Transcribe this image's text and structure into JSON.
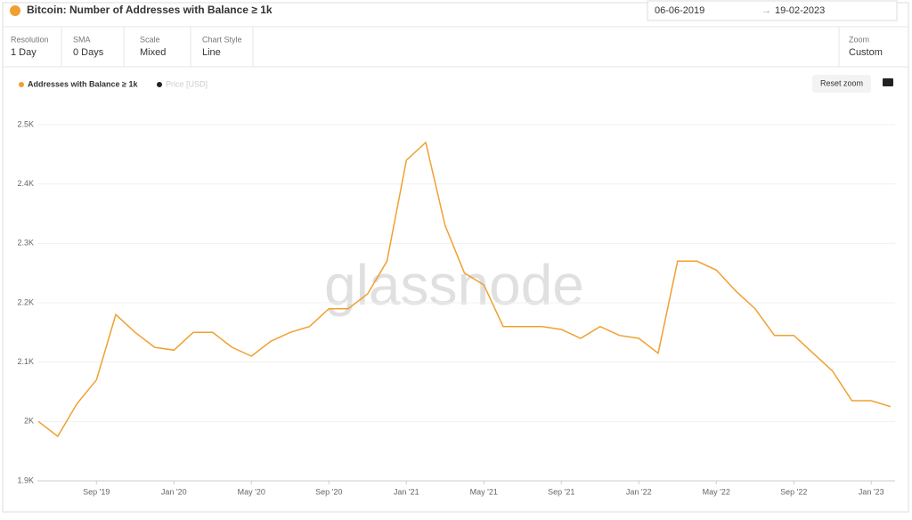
{
  "ui": {
    "title": "Bitcoin: Number of Addresses with Balance ≥ 1k",
    "date_from": "06-06-2019",
    "date_to": "19-02-2023",
    "controls": [
      {
        "label": "Resolution",
        "value": "1 Day"
      },
      {
        "label": "SMA",
        "value": "0 Days"
      },
      {
        "label": "Scale",
        "value": "Mixed"
      },
      {
        "label": "Chart Style",
        "value": "Line"
      }
    ],
    "zoom": {
      "label": "Zoom",
      "value": "Custom"
    },
    "reset_zoom": "Reset zoom",
    "hidden_legend": "Price [USD]",
    "watermark": "glassnode"
  },
  "chart_data": {
    "type": "line",
    "x": [
      "2019-06",
      "2019-07",
      "2019-08",
      "2019-09",
      "2019-10",
      "2019-11",
      "2019-12",
      "2020-01",
      "2020-02",
      "2020-03",
      "2020-04",
      "2020-05",
      "2020-06",
      "2020-07",
      "2020-08",
      "2020-09",
      "2020-10",
      "2020-11",
      "2020-12",
      "2021-01",
      "2021-02",
      "2021-03",
      "2021-04",
      "2021-05",
      "2021-06",
      "2021-07",
      "2021-08",
      "2021-09",
      "2021-10",
      "2021-11",
      "2021-12",
      "2022-01",
      "2022-02",
      "2022-03",
      "2022-04",
      "2022-05",
      "2022-06",
      "2022-07",
      "2022-08",
      "2022-09",
      "2022-10",
      "2022-11",
      "2022-12",
      "2023-01",
      "2023-02"
    ],
    "series": [
      {
        "name": "Addresses with Balance ≥ 1k",
        "color": "#f0a030",
        "values": [
          2000,
          1975,
          2030,
          2070,
          2180,
          2150,
          2125,
          2120,
          2150,
          2150,
          2125,
          2110,
          2135,
          2150,
          2160,
          2190,
          2190,
          2215,
          2270,
          2440,
          2470,
          2330,
          2250,
          2230,
          2160,
          2160,
          2160,
          2155,
          2140,
          2160,
          2145,
          2140,
          2115,
          2270,
          2270,
          2255,
          2220,
          2190,
          2145,
          2145,
          2115,
          2085,
          2035,
          2035,
          2025
        ]
      }
    ],
    "ylim": [
      1900,
      2545
    ],
    "yticks": [
      {
        "value": 1900,
        "label": "1.9K"
      },
      {
        "value": 2000,
        "label": "2K"
      },
      {
        "value": 2100,
        "label": "2.1K"
      },
      {
        "value": 2200,
        "label": "2.2K"
      },
      {
        "value": 2300,
        "label": "2.3K"
      },
      {
        "value": 2400,
        "label": "2.4K"
      },
      {
        "value": 2500,
        "label": "2.5K"
      }
    ],
    "xticks": [
      {
        "value": "2019-09",
        "label": "Sep '19"
      },
      {
        "value": "2020-01",
        "label": "Jan '20"
      },
      {
        "value": "2020-05",
        "label": "May '20"
      },
      {
        "value": "2020-09",
        "label": "Sep '20"
      },
      {
        "value": "2021-01",
        "label": "Jan '21"
      },
      {
        "value": "2021-05",
        "label": "May '21"
      },
      {
        "value": "2021-09",
        "label": "Sep '21"
      },
      {
        "value": "2022-01",
        "label": "Jan '22"
      },
      {
        "value": "2022-05",
        "label": "May '22"
      },
      {
        "value": "2022-09",
        "label": "Sep '22"
      },
      {
        "value": "2023-01",
        "label": "Jan '23"
      }
    ],
    "grid": true
  }
}
